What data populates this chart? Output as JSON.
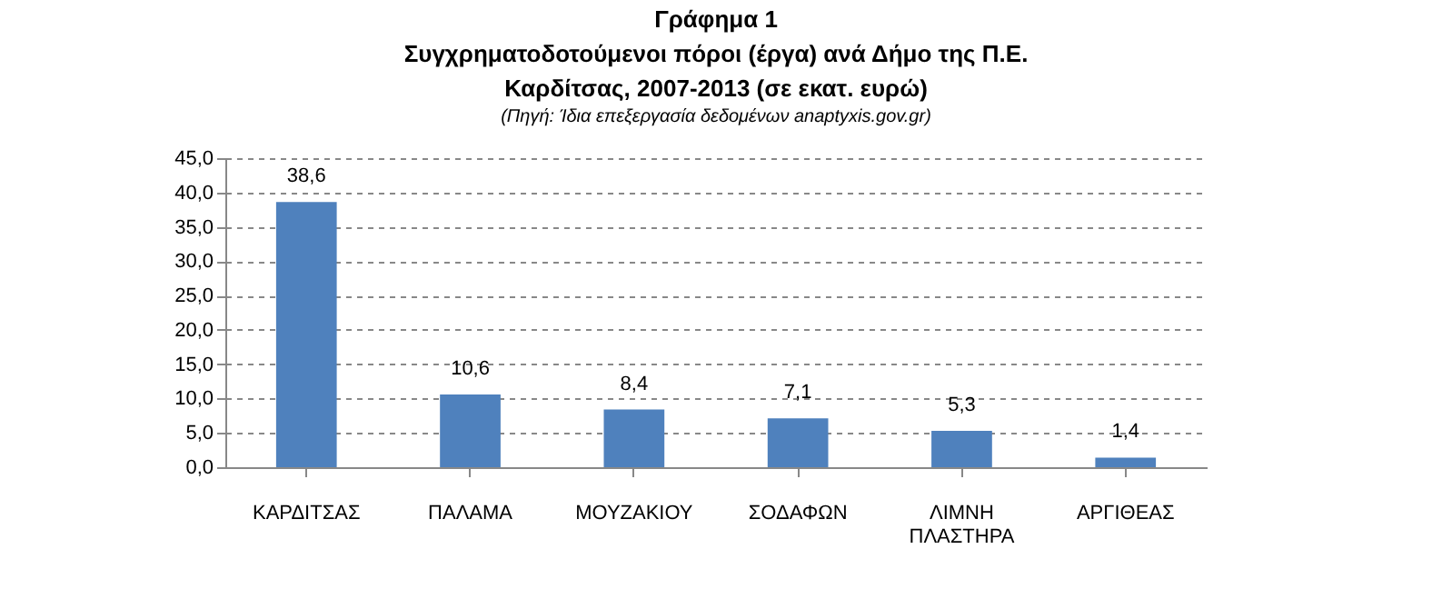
{
  "chart_data": {
    "type": "bar",
    "title": "Γράφημα 1\nΣυγχρηματοδοτούμενοι πόροι (έργα) ανά Δήμο της Π.Ε.\nΚαρδίτσας, 2007-2013  (σε εκατ. ευρώ)",
    "subtitle": "(Πηγή: Ίδια επεξεργασία δεδομένων anaptyxis.gov.gr)",
    "categories": [
      "ΚΑΡΔΙΤΣΑΣ",
      "ΠΑΛΑΜΑ",
      "ΜΟΥΖΑΚΙΟΥ",
      "ΣΟΔΑΦΩΝ",
      "ΛΙΜΝΗ ΠΛΑΣΤΗΡΑ",
      "ΑΡΓΙΘΕΑΣ"
    ],
    "values": [
      38.6,
      10.6,
      8.4,
      7.1,
      5.3,
      1.4
    ],
    "color": "#4f81bd",
    "ylim": [
      0,
      45
    ],
    "yticks": [
      {
        "value": 0,
        "label": "0,0"
      },
      {
        "value": 5,
        "label": "5,0"
      },
      {
        "value": 10,
        "label": "10,0"
      },
      {
        "value": 15,
        "label": "15,0"
      },
      {
        "value": 20,
        "label": "20,0"
      },
      {
        "value": 25,
        "label": "25,0"
      },
      {
        "value": 30,
        "label": "30,0"
      },
      {
        "value": 35,
        "label": "35,0"
      },
      {
        "value": 40,
        "label": "40,0"
      },
      {
        "value": 45,
        "label": "45,0"
      }
    ],
    "grid": "y",
    "value_labels": [
      "38,6",
      "10,6",
      "8,4",
      "7,1",
      "5,3",
      "1,4"
    ]
  }
}
